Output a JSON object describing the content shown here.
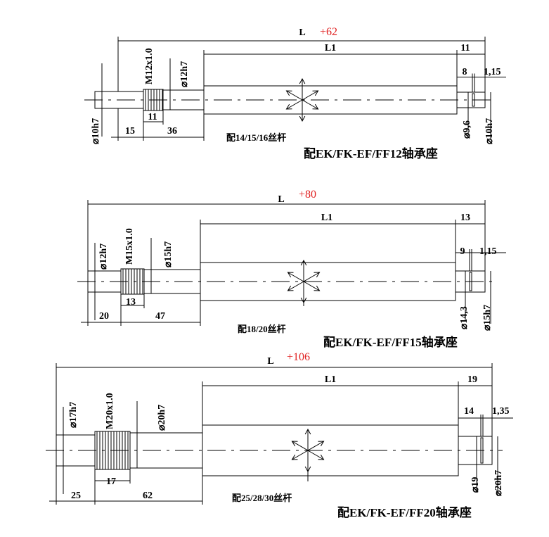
{
  "drawings": [
    {
      "L": "L",
      "tolerance": "+62",
      "L1": "L1",
      "end_len": "11",
      "seat_len": "8",
      "groove": "1,15",
      "thread": "M12x1.0",
      "dia_mid": "⌀12h7",
      "dia_left": "⌀10h7",
      "thread_len": "11",
      "left_len": "15",
      "mid_len": "36",
      "screw_note": "配14/15/16丝杆",
      "dia_seat": "⌀9,6",
      "dia_end": "⌀10h7",
      "title": "配EK/FK-EF/FF12轴承座"
    },
    {
      "L": "L",
      "tolerance": "+80",
      "L1": "L1",
      "end_len": "13",
      "seat_len": "9",
      "groove": "1,15",
      "thread": "M15x1.0",
      "dia_mid": "⌀15h7",
      "dia_left": "⌀12h7",
      "thread_len": "13",
      "left_len": "20",
      "mid_len": "47",
      "screw_note": "配18/20丝杆",
      "dia_seat": "⌀14,3",
      "dia_end": "⌀15h7",
      "title": "配EK/FK-EF/FF15轴承座"
    },
    {
      "L": "L",
      "tolerance": "+106",
      "L1": "L1",
      "end_len": "19",
      "seat_len": "14",
      "groove": "1,35",
      "thread": "M20x1.0",
      "dia_mid": "⌀20h7",
      "dia_left": "⌀17h7",
      "thread_len": "17",
      "left_len": "25",
      "mid_len": "62",
      "screw_note": "配25/28/30丝杆",
      "dia_seat": "⌀19",
      "dia_end": "⌀20h7",
      "title": "配EK/FK-EF/FF20轴承座"
    }
  ]
}
